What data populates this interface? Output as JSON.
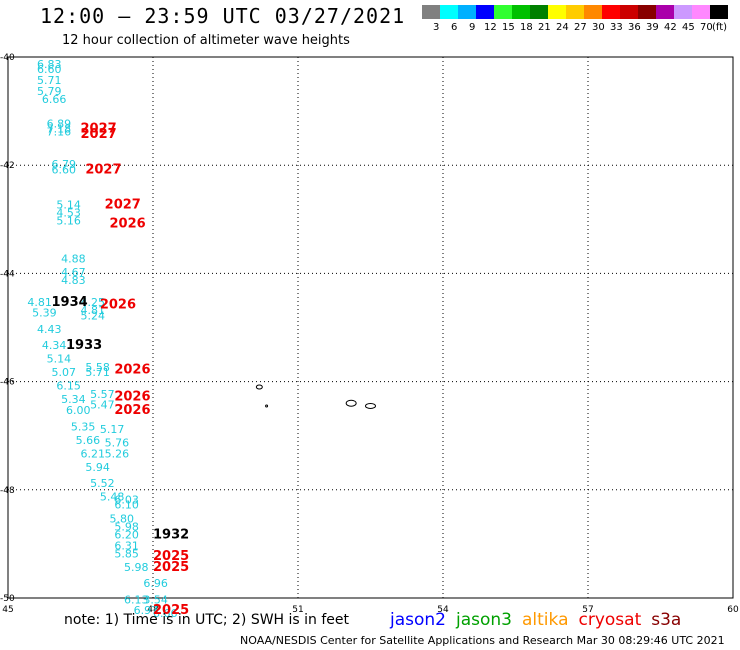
{
  "header": {
    "title": "12:00 — 23:59 UTC 03/27/2021",
    "subtitle": "12 hour collection of altimeter wave heights"
  },
  "colorbar": {
    "colors": [
      "#808080",
      "#00ffff",
      "#00b0ff",
      "#0000ff",
      "#30ff30",
      "#00c000",
      "#008000",
      "#ffff00",
      "#ffcc00",
      "#ff8800",
      "#ff0000",
      "#cc0000",
      "#880000",
      "#aa00aa",
      "#cc99ff",
      "#ff88ff",
      "#000000"
    ],
    "labels": [
      "3",
      "6",
      "9",
      "12",
      "15",
      "18",
      "21",
      "24",
      "27",
      "30",
      "33",
      "36",
      "39",
      "42",
      "45",
      "70",
      "(ft)"
    ]
  },
  "footer": {
    "note": "note:  1) Time is in UTC;  2) SWH is in feet",
    "credit": "NOAA/NESDIS Center for Satellite Applications and Research    Mar 30 08:29:46 UTC 2021"
  },
  "satellites": [
    {
      "name": "jason2",
      "color": "#0000ff"
    },
    {
      "name": "jason3",
      "color": "#00a000"
    },
    {
      "name": "altika",
      "color": "#ff9900"
    },
    {
      "name": "cryosat",
      "color": "#ee0000"
    },
    {
      "name": "s3a",
      "color": "#880000"
    }
  ],
  "chart_data": {
    "type": "scatter",
    "xlabel": "",
    "ylabel": "",
    "xlim": [
      45,
      60
    ],
    "ylim": [
      -50,
      -40
    ],
    "x_ticks": [
      45,
      48,
      51,
      54,
      57,
      60
    ],
    "y_ticks": [
      -40,
      -42,
      -44,
      -46,
      -48,
      -50
    ],
    "grid": true,
    "swh_points": [
      {
        "lon": 45.6,
        "lat": -40.2,
        "text": "6.83"
      },
      {
        "lon": 45.6,
        "lat": -40.3,
        "text": "6.60"
      },
      {
        "lon": 45.6,
        "lat": -40.5,
        "text": "5.71"
      },
      {
        "lon": 45.6,
        "lat": -40.7,
        "text": "5.79"
      },
      {
        "lon": 45.7,
        "lat": -40.85,
        "text": "6.66"
      },
      {
        "lon": 45.8,
        "lat": -41.3,
        "text": "6.89"
      },
      {
        "lon": 45.8,
        "lat": -41.4,
        "text": "7.18"
      },
      {
        "lon": 45.8,
        "lat": -41.45,
        "text": "7.16"
      },
      {
        "lon": 45.9,
        "lat": -42.05,
        "text": "6.79"
      },
      {
        "lon": 45.9,
        "lat": -42.15,
        "text": "6.60"
      },
      {
        "lon": 46.0,
        "lat": -42.8,
        "text": "5.14"
      },
      {
        "lon": 46.0,
        "lat": -42.95,
        "text": "4.53"
      },
      {
        "lon": 46.0,
        "lat": -43.1,
        "text": "5.16"
      },
      {
        "lon": 46.1,
        "lat": -43.8,
        "text": "4.88"
      },
      {
        "lon": 46.1,
        "lat": -44.05,
        "text": "4.67"
      },
      {
        "lon": 46.1,
        "lat": -44.2,
        "text": "4.83"
      },
      {
        "lon": 45.4,
        "lat": -44.6,
        "text": "4.81"
      },
      {
        "lon": 46.5,
        "lat": -44.6,
        "text": "4.25"
      },
      {
        "lon": 45.5,
        "lat": -44.8,
        "text": "5.39"
      },
      {
        "lon": 46.5,
        "lat": -44.75,
        "text": "4.81"
      },
      {
        "lon": 46.5,
        "lat": -44.85,
        "text": "5.24"
      },
      {
        "lon": 45.6,
        "lat": -45.1,
        "text": "4.43"
      },
      {
        "lon": 45.7,
        "lat": -45.4,
        "text": "4.34"
      },
      {
        "lon": 45.8,
        "lat": -45.65,
        "text": "5.14"
      },
      {
        "lon": 45.9,
        "lat": -45.9,
        "text": "5.07"
      },
      {
        "lon": 46.6,
        "lat": -45.8,
        "text": "5.58"
      },
      {
        "lon": 46.6,
        "lat": -45.9,
        "text": "5.71"
      },
      {
        "lon": 46.0,
        "lat": -46.15,
        "text": "6.15"
      },
      {
        "lon": 46.1,
        "lat": -46.4,
        "text": "5.34"
      },
      {
        "lon": 46.7,
        "lat": -46.3,
        "text": "5.57"
      },
      {
        "lon": 46.7,
        "lat": -46.5,
        "text": "5.47"
      },
      {
        "lon": 46.2,
        "lat": -46.6,
        "text": "6.00"
      },
      {
        "lon": 46.3,
        "lat": -46.9,
        "text": "5.35"
      },
      {
        "lon": 46.9,
        "lat": -46.95,
        "text": "5.17"
      },
      {
        "lon": 46.4,
        "lat": -47.15,
        "text": "5.66"
      },
      {
        "lon": 47.0,
        "lat": -47.2,
        "text": "5.76"
      },
      {
        "lon": 46.5,
        "lat": -47.4,
        "text": "6.21"
      },
      {
        "lon": 47.0,
        "lat": -47.4,
        "text": "5.26"
      },
      {
        "lon": 46.6,
        "lat": -47.65,
        "text": "5.94"
      },
      {
        "lon": 46.7,
        "lat": -47.95,
        "text": "5.52"
      },
      {
        "lon": 46.9,
        "lat": -48.2,
        "text": "5.48"
      },
      {
        "lon": 47.2,
        "lat": -48.25,
        "text": "6.03"
      },
      {
        "lon": 47.2,
        "lat": -48.35,
        "text": "6.10"
      },
      {
        "lon": 47.1,
        "lat": -48.6,
        "text": "5.80"
      },
      {
        "lon": 47.2,
        "lat": -48.75,
        "text": "5.98"
      },
      {
        "lon": 47.2,
        "lat": -48.9,
        "text": "6.20"
      },
      {
        "lon": 47.2,
        "lat": -49.1,
        "text": "6.31"
      },
      {
        "lon": 47.2,
        "lat": -49.25,
        "text": "5.85"
      },
      {
        "lon": 47.4,
        "lat": -49.5,
        "text": "5.98"
      },
      {
        "lon": 47.8,
        "lat": -49.8,
        "text": "6.96"
      },
      {
        "lon": 47.4,
        "lat": -50.1,
        "text": "6.13"
      },
      {
        "lon": 47.8,
        "lat": -50.1,
        "text": "3.54"
      },
      {
        "lon": 47.6,
        "lat": -50.3,
        "text": "6.97"
      },
      {
        "lon": 48.0,
        "lat": -50.35,
        "text": "6.66"
      }
    ],
    "time_labels": [
      {
        "lon": 46.5,
        "lat": -41.4,
        "text": "2027",
        "color": "#ee0000"
      },
      {
        "lon": 46.5,
        "lat": -41.5,
        "text": "2027",
        "color": "#ee0000"
      },
      {
        "lon": 46.6,
        "lat": -42.15,
        "text": "2027",
        "color": "#ee0000"
      },
      {
        "lon": 47.0,
        "lat": -42.8,
        "text": "2027",
        "color": "#ee0000"
      },
      {
        "lon": 47.1,
        "lat": -43.15,
        "text": "2026",
        "color": "#ee0000"
      },
      {
        "lon": 45.9,
        "lat": -44.6,
        "text": "1934",
        "color": "#000000"
      },
      {
        "lon": 46.9,
        "lat": -44.65,
        "text": "2026",
        "color": "#ee0000"
      },
      {
        "lon": 46.2,
        "lat": -45.4,
        "text": "1933",
        "color": "#000000"
      },
      {
        "lon": 47.2,
        "lat": -45.85,
        "text": "2026",
        "color": "#ee0000"
      },
      {
        "lon": 47.2,
        "lat": -46.35,
        "text": "2026",
        "color": "#ee0000"
      },
      {
        "lon": 47.2,
        "lat": -46.6,
        "text": "2026",
        "color": "#ee0000"
      },
      {
        "lon": 48.0,
        "lat": -48.9,
        "text": "1932",
        "color": "#000000"
      },
      {
        "lon": 48.0,
        "lat": -49.3,
        "text": "2025",
        "color": "#ee0000"
      },
      {
        "lon": 48.0,
        "lat": -49.5,
        "text": "2025",
        "color": "#ee0000"
      },
      {
        "lon": 48.0,
        "lat": -50.3,
        "text": "2025",
        "color": "#ee0000"
      }
    ],
    "land": [
      "crozet-island-1",
      "crozet-island-2",
      "crozet-island-3",
      "crozet-island-4"
    ]
  }
}
